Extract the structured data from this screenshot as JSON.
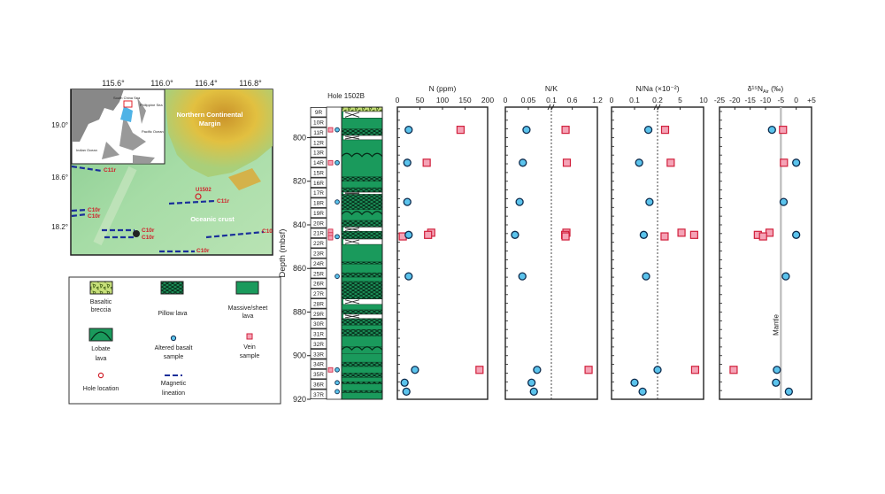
{
  "map": {
    "lon_ticks": [
      "115.6°",
      "116.0°",
      "116.4°",
      "116.8°"
    ],
    "lat_ticks": [
      "19.0°",
      "18.6°",
      "18.2°"
    ],
    "region_label_1": "Northern Continental",
    "region_label_2": "Margin",
    "crust_label": "Oceanic crust",
    "site_label": "U1502",
    "lineations": [
      "C11r",
      "C10r",
      "C10r",
      "C11r",
      "C10r",
      "C10r",
      "C10",
      "C10r"
    ],
    "inset_labels": [
      "South China Sea",
      "Philippine Sea",
      "Pacific Ocean",
      "Indian Ocean"
    ],
    "colors": {
      "lineation": "#1a2f9a",
      "label_red": "#d0202a",
      "shelf": "#d8b13a",
      "ocean_floor": "#9fd7a0"
    }
  },
  "legend": {
    "items": [
      {
        "key": "breccia",
        "line1": "Basaltic",
        "line2": "breccia"
      },
      {
        "key": "pillow",
        "line1": "Pillow lava",
        "line2": ""
      },
      {
        "key": "massive",
        "line1": "Massive/sheet",
        "line2": "lava"
      },
      {
        "key": "lobate",
        "line1": "Lobate",
        "line2": "lava"
      },
      {
        "key": "altered",
        "line1": "Altered basalt",
        "line2": "sample"
      },
      {
        "key": "vein",
        "line1": "Vein",
        "line2": "sample"
      },
      {
        "key": "hole",
        "line1": "Hole location",
        "line2": ""
      },
      {
        "key": "lineation",
        "line1": "Magnetic",
        "line2": "lineation"
      }
    ]
  },
  "column": {
    "title": "Hole 1502B",
    "cores": [
      "9R",
      "10R",
      "11R",
      "12R",
      "13R",
      "14R",
      "15R",
      "16R",
      "17R",
      "18R",
      "19R",
      "20R",
      "21R",
      "22R",
      "23R",
      "24R",
      "25R",
      "26R",
      "27R",
      "28R",
      "29R",
      "30R",
      "31R",
      "32R",
      "33R",
      "34R",
      "35R",
      "36R",
      "37R"
    ],
    "lithology": [
      [
        786,
        788,
        "breccia"
      ],
      [
        788,
        791,
        "gap"
      ],
      [
        791,
        796,
        "massive"
      ],
      [
        796,
        799,
        "pillow"
      ],
      [
        799,
        801,
        "gap"
      ],
      [
        801,
        818,
        "lobate"
      ],
      [
        818,
        820,
        "pillow"
      ],
      [
        820,
        823,
        "massive"
      ],
      [
        823,
        825,
        "pillow"
      ],
      [
        825,
        826,
        "gap"
      ],
      [
        826,
        833,
        "pillow"
      ],
      [
        833,
        838,
        "lobate"
      ],
      [
        838,
        841,
        "pillow"
      ],
      [
        841,
        843,
        "gap"
      ],
      [
        843,
        846.5,
        "pillow"
      ],
      [
        846.5,
        849,
        "gap"
      ],
      [
        849,
        857,
        "massive"
      ],
      [
        857,
        858,
        "pillow"
      ],
      [
        858,
        862,
        "massive"
      ],
      [
        862,
        864,
        "pillow"
      ],
      [
        864,
        866,
        "massive"
      ],
      [
        866,
        874,
        "pillow"
      ],
      [
        874,
        876.5,
        "gap"
      ],
      [
        876.5,
        879,
        "massive"
      ],
      [
        879,
        881,
        "pillow"
      ],
      [
        881,
        883,
        "gap"
      ],
      [
        883,
        886,
        "pillow"
      ],
      [
        886,
        888,
        "massive"
      ],
      [
        888,
        891,
        "pillow"
      ],
      [
        891,
        896,
        "massive"
      ],
      [
        896,
        899,
        "lobate"
      ],
      [
        899,
        903,
        "massive"
      ],
      [
        903,
        905,
        "pillow"
      ],
      [
        905,
        908,
        "massive"
      ],
      [
        908,
        910,
        "pillow"
      ],
      [
        910,
        912,
        "massive"
      ],
      [
        912,
        913,
        "pillow"
      ],
      [
        913,
        916,
        "massive"
      ],
      [
        916,
        917,
        "pillow"
      ],
      [
        917,
        920,
        "massive"
      ]
    ]
  },
  "chart_data": {
    "type": "scatter",
    "ylabel": "Depth (mbsf)",
    "ylim": [
      786,
      920
    ],
    "y_inverted": true,
    "y_ticks": [
      800,
      820,
      840,
      860,
      880,
      900,
      920
    ],
    "colors": {
      "altered": "#5bc3ec",
      "altered_edge": "#0d2b4d",
      "vein": "#f5a3b6",
      "vein_edge": "#d1203c",
      "mantle": "#bbbbbb"
    },
    "panels": [
      {
        "key": "N",
        "title": "N (ppm)",
        "x_segments": [
          [
            0,
            200
          ]
        ],
        "tick_values": [
          0,
          50,
          100,
          150,
          200
        ],
        "tick_labels": [
          "0",
          "50",
          "100",
          "150",
          "200"
        ],
        "reference": null
      },
      {
        "key": "NK",
        "title": "N/K",
        "x_segments": [
          [
            0,
            0.1
          ],
          [
            0.1,
            1.2
          ]
        ],
        "tick_values": [
          0,
          0.05,
          0.1,
          0.6,
          1.2
        ],
        "tick_labels": [
          "0",
          "0.05",
          "0.1",
          "0.6",
          "1.2"
        ],
        "reference": {
          "value": 0.1,
          "style": "dashed"
        }
      },
      {
        "key": "NNa",
        "title": "N/Na (×10⁻²)",
        "x_segments": [
          [
            0,
            0.2
          ],
          [
            0.2,
            10
          ]
        ],
        "tick_values": [
          0,
          0.1,
          0.2,
          5,
          10
        ],
        "tick_labels": [
          "0",
          "0.1",
          "0.2",
          "5",
          "10"
        ],
        "reference": {
          "value": 0.2,
          "style": "dashed"
        }
      },
      {
        "key": "d15N",
        "title": "δ¹⁵N",
        "title_sub": "Air",
        "title_unit": " (‰)",
        "x_segments": [
          [
            -25,
            5
          ]
        ],
        "tick_values": [
          -25,
          -20,
          -15,
          -10,
          -5,
          0,
          5
        ],
        "tick_labels": [
          "-25",
          "-20",
          "-15",
          "-10",
          "-5",
          "0",
          "+5"
        ],
        "reference": {
          "value": -5,
          "style": "solid",
          "label": "Mantle"
        }
      }
    ],
    "series": [
      {
        "name": "Altered basalt sample",
        "marker": "circle",
        "points": [
          {
            "depth": 796.4,
            "N": 25,
            "NK": 0.046,
            "NNa": 0.16,
            "d15N": -7.9
          },
          {
            "depth": 811.5,
            "N": 22,
            "NK": 0.038,
            "NNa": 0.12,
            "d15N": 0.0
          },
          {
            "depth": 829.5,
            "N": 22,
            "NK": 0.031,
            "NNa": 0.165,
            "d15N": -4.1
          },
          {
            "depth": 844.6,
            "N": 25,
            "NK": 0.021,
            "NNa": 0.14,
            "d15N": 0.0
          },
          {
            "depth": 863.6,
            "N": 25,
            "NK": 0.037,
            "NNa": 0.15,
            "d15N": -3.4
          },
          {
            "depth": 906.5,
            "N": 39,
            "NK": 0.069,
            "NNa": 0.2,
            "d15N": -6.3
          },
          {
            "depth": 912.4,
            "N": 16,
            "NK": 0.057,
            "NNa": 0.1,
            "d15N": -6.6
          },
          {
            "depth": 916.5,
            "N": 20,
            "NK": 0.062,
            "NNa": 0.135,
            "d15N": -2.4
          }
        ]
      },
      {
        "name": "Vein sample",
        "marker": "square",
        "points": [
          {
            "depth": 796.4,
            "N": 140,
            "NK": 0.44,
            "NNa": 1.8,
            "d15N": -4.3
          },
          {
            "depth": 811.5,
            "N": 65,
            "NK": 0.47,
            "NNa": 3.0,
            "d15N": -4.0
          },
          {
            "depth": 843.6,
            "N": 75,
            "NK": 0.46,
            "NNa": 5.3,
            "d15N": -8.7
          },
          {
            "depth": 844.6,
            "N": 68,
            "NK": 0.43,
            "NNa": 8.0,
            "d15N": -12.5
          },
          {
            "depth": 845.3,
            "N": 12,
            "NK": 0.44,
            "NNa": 1.7,
            "d15N": -10.8
          },
          {
            "depth": 906.5,
            "N": 182,
            "NK": 0.99,
            "NNa": 8.2,
            "d15N": -20.4
          }
        ]
      }
    ]
  }
}
